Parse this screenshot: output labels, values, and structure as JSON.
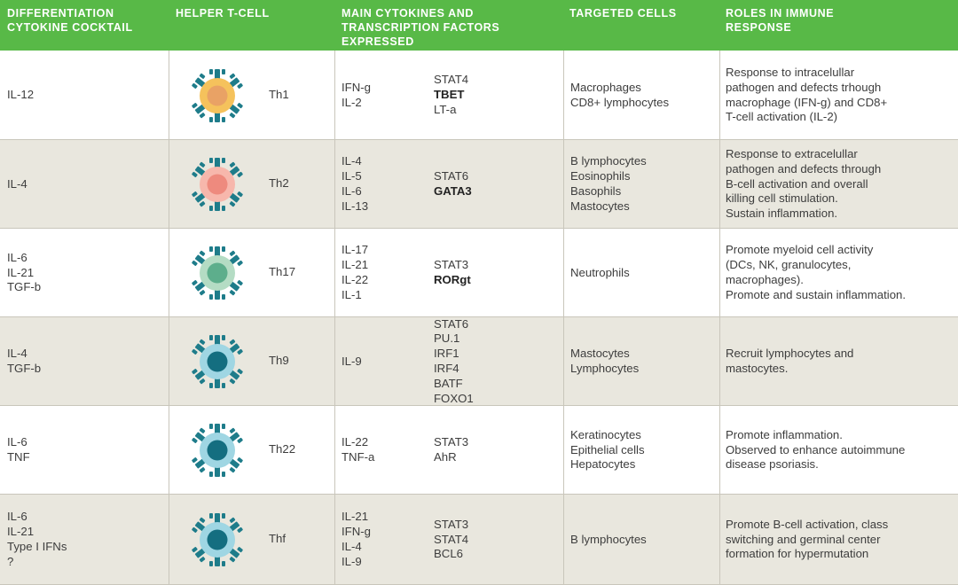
{
  "header": {
    "col1": [
      "DIFFERENTIATION",
      "CYTOKINE COCKTAIL"
    ],
    "col2": [
      "HELPER T-CELL"
    ],
    "col3": [
      "MAIN CYTOKINES AND",
      "TRANSCRIPTION FACTORS",
      "EXPRESSED"
    ],
    "col4": [
      "TARGETED CELLS"
    ],
    "col5": [
      "ROLES IN IMMUNE",
      "RESPONSE"
    ]
  },
  "colors": {
    "header_bg": "#58b947",
    "row_alt_bg": "#e9e7de",
    "receptor": "#1e7c8a"
  },
  "rows": [
    {
      "cocktail": [
        "IL-12"
      ],
      "cell_name": "Th1",
      "icon": {
        "name": "th1-cell-icon",
        "outer": "#f5c25c",
        "inner": "#e9a265"
      },
      "cytokines": [
        "IFN-g",
        "IL-2"
      ],
      "tf_plain_before": [
        "STAT4"
      ],
      "tf_bold": "TBET",
      "tf_plain_after": [
        "LT-a"
      ],
      "targets": [
        "Macrophages",
        "CD8+ lymphocytes"
      ],
      "roles": [
        "Response to intracelullar",
        "pathogen and defects trhough",
        "macrophage (IFN-g) and CD8+",
        "T-cell activation (IL-2)"
      ]
    },
    {
      "cocktail": [
        "IL-4"
      ],
      "cell_name": "Th2",
      "icon": {
        "name": "th2-cell-icon",
        "outer": "#f7b7ac",
        "inner": "#ee8a7e"
      },
      "cytokines": [
        "IL-4",
        "IL-5",
        "IL-6",
        "IL-13"
      ],
      "tf_plain_before": [
        "STAT6"
      ],
      "tf_bold": "GATA3",
      "tf_plain_after": [],
      "targets": [
        "B lymphocytes",
        "Eosinophils",
        "Basophils",
        "Mastocytes"
      ],
      "roles": [
        "Response to extracelullar",
        "pathogen and defects through",
        "B-cell activation and overall",
        "killing cell stimulation.",
        "Sustain inflammation."
      ]
    },
    {
      "cocktail": [
        "IL-6",
        "IL-21",
        "TGF-b"
      ],
      "cell_name": "Th17",
      "icon": {
        "name": "th17-cell-icon",
        "outer": "#b4dcc4",
        "inner": "#5dae8c"
      },
      "cytokines": [
        "IL-17",
        "IL-21",
        "IL-22",
        "IL-1"
      ],
      "tf_plain_before": [
        "STAT3"
      ],
      "tf_bold": "RORgt",
      "tf_plain_after": [],
      "targets": [
        "Neutrophils"
      ],
      "roles": [
        "Promote myeloid cell activity",
        "(DCs, NK, granulocytes,",
        "macrophages).",
        "Promote and sustain inflammation."
      ]
    },
    {
      "cocktail": [
        "IL-4",
        "TGF-b"
      ],
      "cell_name": "Th9",
      "icon": {
        "name": "th9-cell-icon",
        "outer": "#9fd6e3",
        "inner": "#146e80"
      },
      "cytokines": [
        "IL-9"
      ],
      "tf_plain_before": [
        "STAT6",
        "PU.1",
        "IRF1",
        "IRF4",
        "BATF",
        "FOXO1"
      ],
      "tf_bold": "",
      "tf_plain_after": [],
      "targets": [
        "Mastocytes",
        "Lymphocytes"
      ],
      "roles": [
        "Recruit lymphocytes and",
        "mastocytes."
      ]
    },
    {
      "cocktail": [
        "IL-6",
        "TNF"
      ],
      "cell_name": "Th22",
      "icon": {
        "name": "th22-cell-icon",
        "outer": "#9fd6e3",
        "inner": "#146e80"
      },
      "cytokines": [
        "IL-22",
        "TNF-a"
      ],
      "tf_plain_before": [
        "STAT3",
        "AhR"
      ],
      "tf_bold": "",
      "tf_plain_after": [],
      "targets": [
        "Keratinocytes",
        "Epithelial cells",
        "Hepatocytes"
      ],
      "roles": [
        "Promote inflammation.",
        "Observed to enhance autoimmune",
        "disease psoriasis."
      ]
    },
    {
      "cocktail": [
        "IL-6",
        "IL-21",
        "Type I IFNs",
        "?"
      ],
      "cell_name": "Thf",
      "icon": {
        "name": "thf-cell-icon",
        "outer": "#9fd6e3",
        "inner": "#146e80"
      },
      "cytokines": [
        "IL-21",
        "IFN-g",
        "IL-4",
        "IL-9"
      ],
      "tf_plain_before": [
        "STAT3",
        "STAT4",
        "BCL6"
      ],
      "tf_bold": "",
      "tf_plain_after": [],
      "targets": [
        "B lymphocytes"
      ],
      "roles": [
        "Promote B-cell activation, class",
        "switching and germinal center",
        "formation for hypermutation"
      ]
    }
  ]
}
